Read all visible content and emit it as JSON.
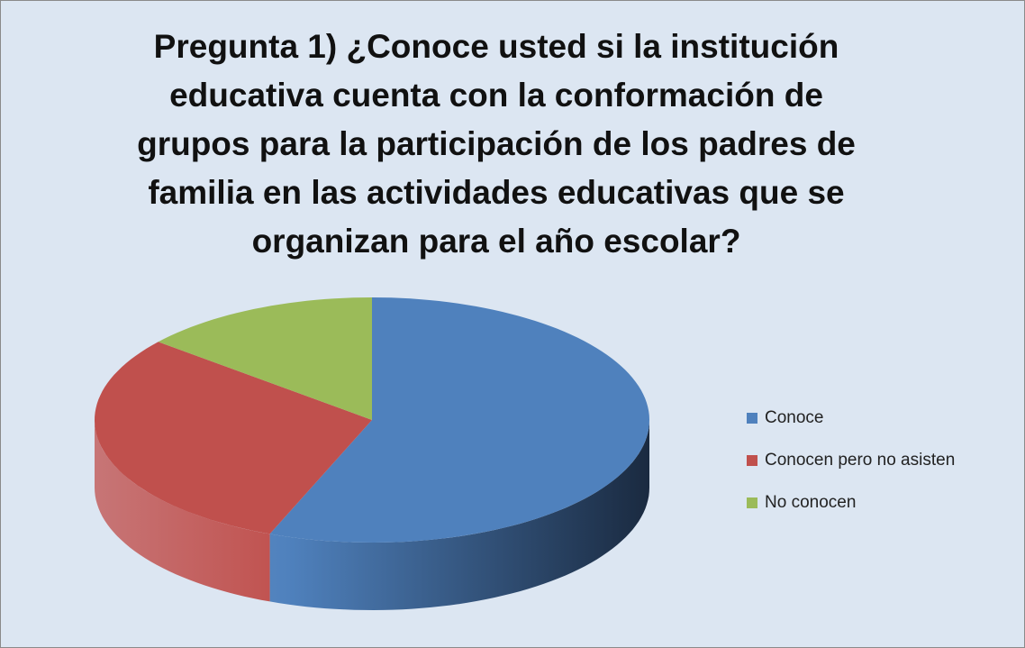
{
  "chart_data": {
    "type": "pie3d",
    "title": "Pregunta 1) ¿Conoce usted si la institución educativa cuenta con la conformación de grupos para la participación de los padres de familia en las actividades educativas que se organizan para el año escolar?",
    "categories": [
      "Conoce",
      "Conocen pero no asisten",
      "No conocen"
    ],
    "values": [
      56,
      30,
      14
    ],
    "colors": [
      "#4f81bd",
      "#c0504d",
      "#9bbb59"
    ],
    "legend": "right"
  }
}
